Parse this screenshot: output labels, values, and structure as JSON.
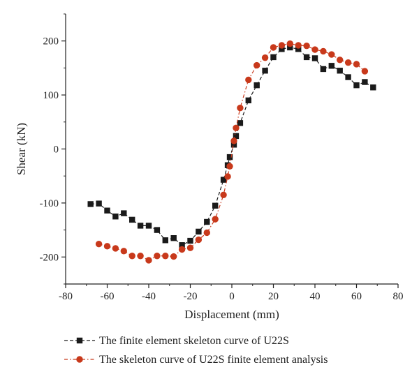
{
  "chart_data": {
    "type": "line",
    "title": "",
    "xlabel": "Displacement (mm)",
    "ylabel": "Shear (kN)",
    "xlim": [
      -80,
      80
    ],
    "ylim": [
      -250,
      250
    ],
    "xticks": [
      -80,
      -60,
      -40,
      -20,
      0,
      20,
      40,
      60,
      80
    ],
    "yticks": [
      -200,
      -100,
      0,
      100,
      200
    ],
    "xtick_labels": [
      "-80",
      "-60",
      "-40",
      "-20",
      "0",
      "20",
      "40",
      "60",
      "80"
    ],
    "ytick_labels": [
      "-200",
      "-100",
      "0",
      "100",
      "200"
    ],
    "grid": false,
    "legend_position": "bottom",
    "series": [
      {
        "name": "The finite element skeleton curve of U22S",
        "color": "#1a1a1a",
        "marker": "square",
        "line_style": "dashed",
        "points": [
          [
            -68,
            -102
          ],
          [
            -64,
            -101
          ],
          [
            -60,
            -114
          ],
          [
            -56,
            -125
          ],
          [
            -52,
            -119
          ],
          [
            -48,
            -131
          ],
          [
            -44,
            -142
          ],
          [
            -40,
            -142
          ],
          [
            -36,
            -150
          ],
          [
            -32,
            -169
          ],
          [
            -28,
            -165
          ],
          [
            -24,
            -178
          ],
          [
            -20,
            -170
          ],
          [
            -16,
            -153
          ],
          [
            -12,
            -135
          ],
          [
            -8,
            -105
          ],
          [
            -4,
            -57
          ],
          [
            -2,
            -30
          ],
          [
            -1,
            -15
          ],
          [
            1,
            8
          ],
          [
            2,
            24
          ],
          [
            4,
            48
          ],
          [
            8,
            90
          ],
          [
            12,
            118
          ],
          [
            16,
            145
          ],
          [
            20,
            170
          ],
          [
            24,
            185
          ],
          [
            28,
            188
          ],
          [
            32,
            185
          ],
          [
            36,
            170
          ],
          [
            40,
            168
          ],
          [
            44,
            148
          ],
          [
            48,
            154
          ],
          [
            52,
            145
          ],
          [
            56,
            133
          ],
          [
            60,
            118
          ],
          [
            64,
            124
          ],
          [
            68,
            114
          ]
        ]
      },
      {
        "name": "The skeleton curve of U22S finite element analysis",
        "color": "#c8391b",
        "marker": "circle",
        "line_style": "dash-dot",
        "points": [
          [
            -64,
            -176
          ],
          [
            -60,
            -180
          ],
          [
            -56,
            -184
          ],
          [
            -52,
            -189
          ],
          [
            -48,
            -198
          ],
          [
            -44,
            -198
          ],
          [
            -40,
            -206
          ],
          [
            -36,
            -198
          ],
          [
            -32,
            -198
          ],
          [
            -28,
            -199
          ],
          [
            -24,
            -186
          ],
          [
            -20,
            -183
          ],
          [
            -16,
            -168
          ],
          [
            -12,
            -155
          ],
          [
            -8,
            -130
          ],
          [
            -4,
            -85
          ],
          [
            -2,
            -51
          ],
          [
            -1,
            -32
          ],
          [
            1,
            15
          ],
          [
            2,
            39
          ],
          [
            4,
            76
          ],
          [
            8,
            128
          ],
          [
            12,
            155
          ],
          [
            16,
            169
          ],
          [
            20,
            188
          ],
          [
            24,
            192
          ],
          [
            28,
            195
          ],
          [
            32,
            192
          ],
          [
            36,
            191
          ],
          [
            40,
            184
          ],
          [
            44,
            181
          ],
          [
            48,
            175
          ],
          [
            52,
            165
          ],
          [
            56,
            160
          ],
          [
            60,
            157
          ],
          [
            64,
            144
          ]
        ]
      }
    ]
  }
}
